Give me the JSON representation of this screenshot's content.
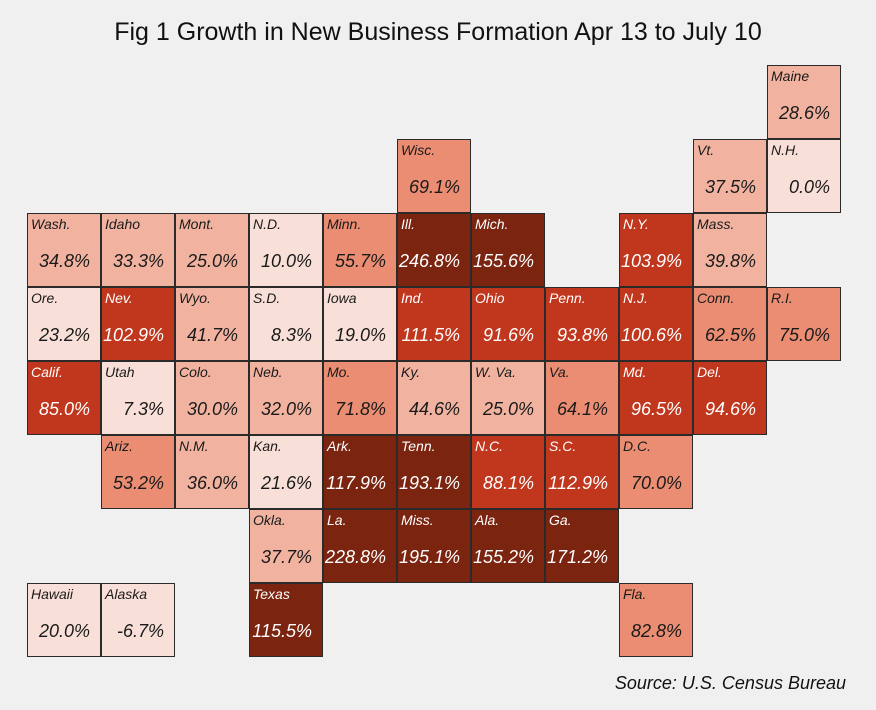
{
  "chart_data": {
    "type": "heatmap",
    "title": "Fig 1 Growth in New Business Formation Apr 13 to July 10",
    "source": "Source: U.S. Census Bureau",
    "value_suffix": "%",
    "color_scale": [
      "#f8dfd7",
      "#f1b3a0",
      "#eb8d72",
      "#c0371e",
      "#7b2410"
    ],
    "tiles": [
      {
        "label": "Maine",
        "value": 28.6,
        "col": 10,
        "row": 0
      },
      {
        "label": "Wisc.",
        "value": 69.1,
        "col": 5,
        "row": 1
      },
      {
        "label": "Vt.",
        "value": 37.5,
        "col": 9,
        "row": 1
      },
      {
        "label": "N.H.",
        "value": 0.0,
        "col": 10,
        "row": 1
      },
      {
        "label": "Wash.",
        "value": 34.8,
        "col": 0,
        "row": 2
      },
      {
        "label": "Idaho",
        "value": 33.3,
        "col": 1,
        "row": 2
      },
      {
        "label": "Mont.",
        "value": 25.0,
        "col": 2,
        "row": 2
      },
      {
        "label": "N.D.",
        "value": 10.0,
        "col": 3,
        "row": 2
      },
      {
        "label": "Minn.",
        "value": 55.7,
        "col": 4,
        "row": 2
      },
      {
        "label": "Ill.",
        "value": 246.8,
        "col": 5,
        "row": 2
      },
      {
        "label": "Mich.",
        "value": 155.6,
        "col": 6,
        "row": 2
      },
      {
        "label": "N.Y.",
        "value": 103.9,
        "col": 8,
        "row": 2
      },
      {
        "label": "Mass.",
        "value": 39.8,
        "col": 9,
        "row": 2
      },
      {
        "label": "Ore.",
        "value": 23.2,
        "col": 0,
        "row": 3
      },
      {
        "label": "Nev.",
        "value": 102.9,
        "col": 1,
        "row": 3
      },
      {
        "label": "Wyo.",
        "value": 41.7,
        "col": 2,
        "row": 3
      },
      {
        "label": "S.D.",
        "value": 8.3,
        "col": 3,
        "row": 3
      },
      {
        "label": "Iowa",
        "value": 19.0,
        "col": 4,
        "row": 3
      },
      {
        "label": "Ind.",
        "value": 111.5,
        "col": 5,
        "row": 3
      },
      {
        "label": "Ohio",
        "value": 91.6,
        "col": 6,
        "row": 3
      },
      {
        "label": "Penn.",
        "value": 93.8,
        "col": 7,
        "row": 3
      },
      {
        "label": "N.J.",
        "value": 100.6,
        "col": 8,
        "row": 3
      },
      {
        "label": "Conn.",
        "value": 62.5,
        "col": 9,
        "row": 3
      },
      {
        "label": "R.I.",
        "value": 75.0,
        "col": 10,
        "row": 3
      },
      {
        "label": "Calif.",
        "value": 85.0,
        "col": 0,
        "row": 4
      },
      {
        "label": "Utah",
        "value": 7.3,
        "col": 1,
        "row": 4
      },
      {
        "label": "Colo.",
        "value": 30.0,
        "col": 2,
        "row": 4
      },
      {
        "label": "Neb.",
        "value": 32.0,
        "col": 3,
        "row": 4
      },
      {
        "label": "Mo.",
        "value": 71.8,
        "col": 4,
        "row": 4
      },
      {
        "label": "Ky.",
        "value": 44.6,
        "col": 5,
        "row": 4
      },
      {
        "label": "W. Va.",
        "value": 25.0,
        "col": 6,
        "row": 4
      },
      {
        "label": "Va.",
        "value": 64.1,
        "col": 7,
        "row": 4
      },
      {
        "label": "Md.",
        "value": 96.5,
        "col": 8,
        "row": 4
      },
      {
        "label": "Del.",
        "value": 94.6,
        "col": 9,
        "row": 4
      },
      {
        "label": "Ariz.",
        "value": 53.2,
        "col": 1,
        "row": 5
      },
      {
        "label": "N.M.",
        "value": 36.0,
        "col": 2,
        "row": 5
      },
      {
        "label": "Kan.",
        "value": 21.6,
        "col": 3,
        "row": 5
      },
      {
        "label": "Ark.",
        "value": 117.9,
        "col": 4,
        "row": 5
      },
      {
        "label": "Tenn.",
        "value": 193.1,
        "col": 5,
        "row": 5
      },
      {
        "label": "N.C.",
        "value": 88.1,
        "col": 6,
        "row": 5
      },
      {
        "label": "S.C.",
        "value": 112.9,
        "col": 7,
        "row": 5
      },
      {
        "label": "D.C.",
        "value": 70.0,
        "col": 8,
        "row": 5
      },
      {
        "label": "Okla.",
        "value": 37.7,
        "col": 3,
        "row": 6
      },
      {
        "label": "La.",
        "value": 228.8,
        "col": 4,
        "row": 6
      },
      {
        "label": "Miss.",
        "value": 195.1,
        "col": 5,
        "row": 6
      },
      {
        "label": "Ala.",
        "value": 155.2,
        "col": 6,
        "row": 6
      },
      {
        "label": "Ga.",
        "value": 171.2,
        "col": 7,
        "row": 6
      },
      {
        "label": "Hawaii",
        "value": 20.0,
        "col": 0,
        "row": 7
      },
      {
        "label": "Alaska",
        "value": -6.7,
        "col": 1,
        "row": 7
      },
      {
        "label": "Texas",
        "value": 115.5,
        "col": 3,
        "row": 7
      },
      {
        "label": "Fla.",
        "value": 82.8,
        "col": 8,
        "row": 7
      }
    ]
  }
}
